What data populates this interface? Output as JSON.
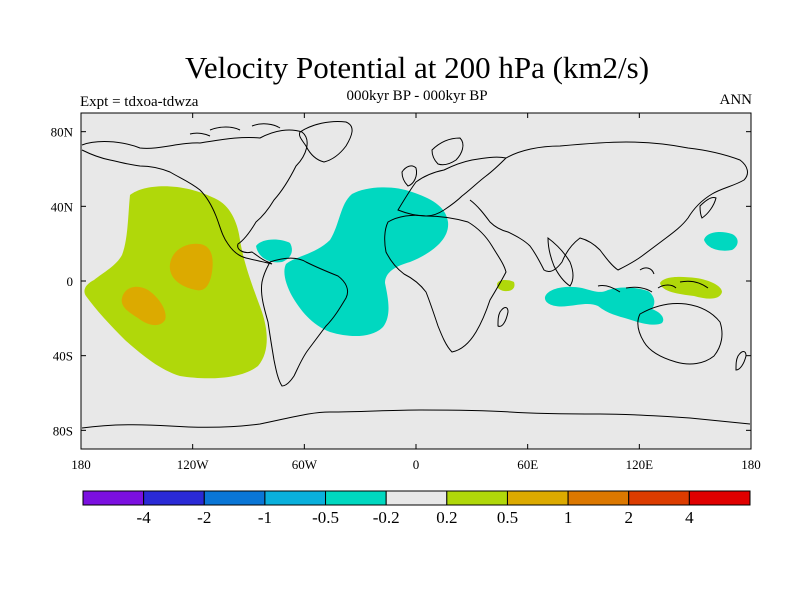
{
  "header": {
    "title": "Velocity Potential at 200 hPa (km2/s)",
    "subtitle": "000kyr BP - 000kyr BP",
    "left_label": "Expt = tdxoa-tdwza",
    "right_label": "ANN"
  },
  "chart_data": {
    "type": "heatmap",
    "title": "Velocity Potential at 200 hPa (km2/s)",
    "subtitle": "000kyr BP - 000kyr BP",
    "xlim": [
      -180,
      180
    ],
    "ylim": [
      -90,
      90
    ],
    "x_ticks": [
      {
        "value": -180,
        "label": "180"
      },
      {
        "value": -120,
        "label": "120W"
      },
      {
        "value": -60,
        "label": "60W"
      },
      {
        "value": 0,
        "label": "0"
      },
      {
        "value": 60,
        "label": "60E"
      },
      {
        "value": 120,
        "label": "120E"
      },
      {
        "value": 180,
        "label": "180"
      }
    ],
    "y_ticks": [
      {
        "value": 80,
        "label": "80N"
      },
      {
        "value": 40,
        "label": "40N"
      },
      {
        "value": 0,
        "label": "0"
      },
      {
        "value": -40,
        "label": "40S"
      },
      {
        "value": -80,
        "label": "80S"
      }
    ],
    "colorbar": {
      "colors": [
        "#7b10e0",
        "#2a2ad6",
        "#0a76d6",
        "#0ab0dc",
        "#00d8c0",
        "#e8e8e8",
        "#b0d80a",
        "#dcaa00",
        "#dc7800",
        "#dc3c00",
        "#e00000"
      ],
      "labels": [
        "-4",
        "-2",
        "-1",
        "-0.5",
        "-0.2",
        "0.2",
        "0.5",
        "1",
        "2",
        "4"
      ]
    },
    "colors": {
      "background": "#e8e8e8",
      "neg_0_2_to_0_5": "#00d8c0",
      "pos_0_2_to_0_5": "#b0d80a",
      "pos_0_5_to_1": "#dcaa00",
      "coast": "#000000"
    },
    "regions": [
      {
        "sign": "positive",
        "range": "0.2 to 0.5",
        "location": "East Pacific"
      },
      {
        "sign": "positive",
        "range": "0.5 to 1",
        "location": "Central-east Pacific"
      },
      {
        "sign": "negative",
        "range": "-0.5 to -0.2",
        "location": "Tropical Atlantic / South America / North Africa"
      },
      {
        "sign": "negative",
        "range": "-0.5 to -0.2",
        "location": "Indian Ocean / Maritime Continent"
      },
      {
        "sign": "positive",
        "range": "0.2 to 0.5",
        "location": "West Pacific"
      }
    ]
  }
}
